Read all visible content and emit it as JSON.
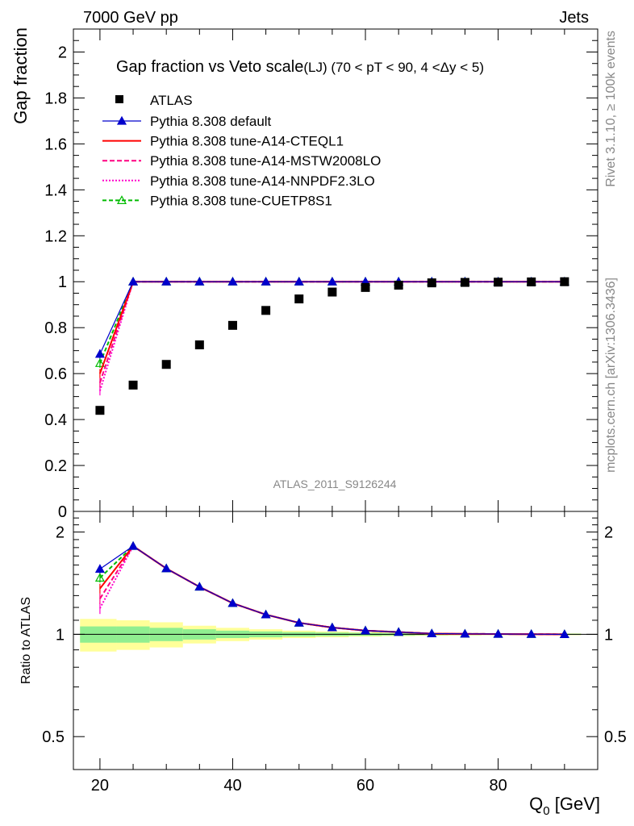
{
  "header": {
    "left": "7000 GeV pp",
    "right": "Jets"
  },
  "side": {
    "rivet": "Rivet 3.1.10, ≥ 100k events",
    "mcplots": "mcplots.cern.ch [arXiv:1306.3436]"
  },
  "colors": {
    "atlas": "#000000",
    "default": "#0000cc",
    "cteql1": "#ff0000",
    "mstw": "#ff0080",
    "nnpdf": "#ff00cc",
    "cuetp": "#00bb00",
    "band_inner": "#90ee90",
    "band_outer": "#ffff99"
  },
  "chart_data": {
    "type": "line",
    "title": "Gap fraction vs Veto scale",
    "subtitle": "(LJ) (70 < pT <  90, 4 <Δy < 5)",
    "watermark": "ATLAS_2011_S9126244",
    "xlabel": "Q",
    "xlabel_sub": "0",
    "xlabel_unit": " [GeV]",
    "ylabel": "Gap fraction",
    "ratio_ylabel": "Ratio to ATLAS",
    "xlim": [
      16,
      95
    ],
    "ylim": [
      0,
      2.1
    ],
    "ratio_ylim": [
      0.4,
      2.3
    ],
    "x_ticks": [
      20,
      40,
      60,
      80
    ],
    "y_ticks": [
      0,
      0.2,
      0.4,
      0.6,
      0.8,
      1,
      1.2,
      1.4,
      1.6,
      1.8,
      2
    ],
    "y_tick_labels": [
      "0",
      "0.2",
      "0.4",
      "0.6",
      "0.8",
      "1",
      "1.2",
      "1.4",
      "1.6",
      "1.8",
      "2"
    ],
    "ratio_ticks": [
      0.5,
      1,
      2
    ],
    "ratio_tick_labels": [
      "0.5",
      "1",
      "2"
    ],
    "x": [
      20,
      25,
      30,
      35,
      40,
      45,
      50,
      55,
      60,
      65,
      70,
      75,
      80,
      85,
      90
    ],
    "atlas": [
      0.44,
      0.55,
      0.64,
      0.725,
      0.81,
      0.875,
      0.925,
      0.955,
      0.975,
      0.985,
      0.995,
      0.997,
      0.998,
      0.999,
      1.0
    ],
    "band_edges": [
      17,
      22.5,
      27.5,
      32.5,
      37.5,
      42.5,
      47.5,
      52.5,
      57.5,
      62.5,
      67.5,
      72.5,
      77.5,
      82.5,
      87.5,
      92.5
    ],
    "band_inner": [
      0.055,
      0.055,
      0.045,
      0.035,
      0.025,
      0.02,
      0.015,
      0.012,
      0.01,
      0.008,
      0.006,
      0.005,
      0.004,
      0.004,
      0.004
    ],
    "band_outer": [
      0.11,
      0.1,
      0.085,
      0.06,
      0.045,
      0.035,
      0.025,
      0.02,
      0.015,
      0.012,
      0.01,
      0.008,
      0.006,
      0.006,
      0.006
    ],
    "series": [
      {
        "name": "Pythia 8.308 default",
        "key": "default",
        "values": [
          0.685,
          1,
          1,
          1,
          1,
          1,
          1,
          1,
          1,
          1,
          1,
          1,
          1,
          1,
          1
        ],
        "err": [
          0.02,
          0,
          0,
          0,
          0,
          0,
          0,
          0,
          0,
          0,
          0,
          0,
          0,
          0,
          0
        ],
        "marker": "triangle-filled",
        "dash": ""
      },
      {
        "name": "Pythia 8.308 tune-A14-CTEQL1",
        "key": "cteql1",
        "values": [
          0.6,
          1,
          1,
          1,
          1,
          1,
          1,
          1,
          1,
          1,
          1,
          1,
          1,
          1,
          1
        ],
        "err": [
          0.02,
          0,
          0,
          0,
          0,
          0,
          0,
          0,
          0,
          0,
          0,
          0,
          0,
          0,
          0
        ],
        "marker": "none",
        "dash": ""
      },
      {
        "name": "Pythia 8.308 tune-A14-MSTW2008LO",
        "key": "mstw",
        "values": [
          0.56,
          1,
          1,
          1,
          1,
          1,
          1,
          1,
          1,
          1,
          1,
          1,
          1,
          1,
          1
        ],
        "err": [
          0.02,
          0,
          0,
          0,
          0,
          0,
          0,
          0,
          0,
          0,
          0,
          0,
          0,
          0,
          0
        ],
        "marker": "none",
        "dash": "6,3"
      },
      {
        "name": "Pythia 8.308 tune-A14-NNPDF2.3LO",
        "key": "nnpdf",
        "values": [
          0.525,
          1,
          1,
          1,
          1,
          1,
          1,
          1,
          1,
          1,
          1,
          1,
          1,
          1,
          1
        ],
        "err": [
          0.02,
          0,
          0,
          0,
          0,
          0,
          0,
          0,
          0,
          0,
          0,
          0,
          0,
          0,
          0
        ],
        "marker": "none",
        "dash": "2,2"
      },
      {
        "name": "Pythia 8.308 tune-CUETP8S1",
        "key": "cuetp",
        "values": [
          0.645,
          1,
          1,
          1,
          1,
          1,
          1,
          1,
          1,
          1,
          1,
          1,
          1,
          1,
          1
        ],
        "err": [
          0.02,
          0,
          0,
          0,
          0,
          0,
          0,
          0,
          0,
          0,
          0,
          0,
          0,
          0,
          0
        ],
        "marker": "triangle-open",
        "dash": "5,3"
      }
    ],
    "legend_atlas": "ATLAS"
  }
}
